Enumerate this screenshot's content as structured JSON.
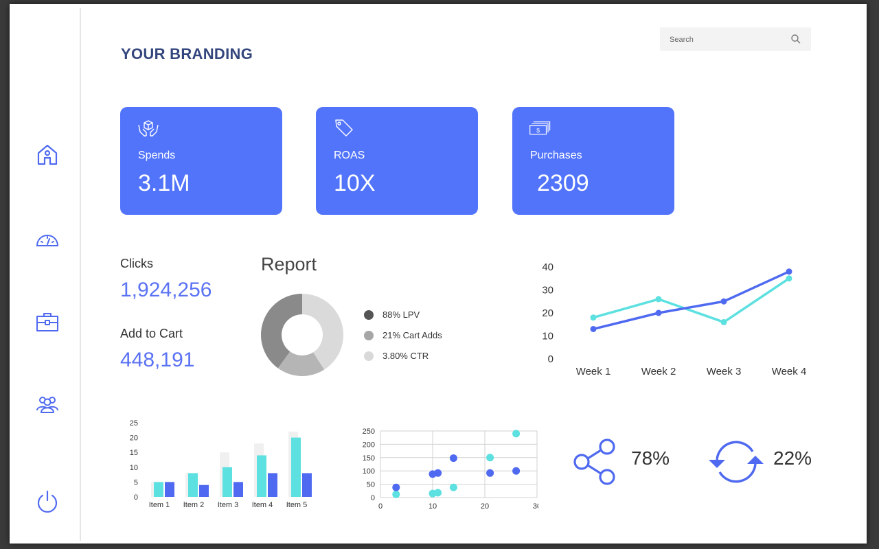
{
  "brand": {
    "title": "YOUR BRANDING"
  },
  "search": {
    "placeholder": "Search"
  },
  "sidebar": {
    "items": [
      {
        "icon": "home-icon"
      },
      {
        "icon": "gauge-icon"
      },
      {
        "icon": "briefcase-icon"
      },
      {
        "icon": "users-icon"
      },
      {
        "icon": "power-icon"
      }
    ]
  },
  "cards": [
    {
      "label": "Spends",
      "value": "3.1M",
      "icon": "box-in-hands-icon"
    },
    {
      "label": "ROAS",
      "value": "10X",
      "icon": "tag-icon"
    },
    {
      "label": "Purchases",
      "value": "2309",
      "icon": "money-icon"
    }
  ],
  "stats": {
    "clicks_label": "Clicks",
    "clicks_value": "1,924,256",
    "cart_label": "Add to Cart",
    "cart_value": "448,191"
  },
  "report": {
    "title": "Report",
    "legend": [
      {
        "label": "88% LPV",
        "color": "#555555"
      },
      {
        "label": "21% Cart Adds",
        "color": "#a6a6a6"
      },
      {
        "label": "3.80% CTR",
        "color": "#d9d9d9"
      }
    ]
  },
  "kpis": {
    "share_value": "78%",
    "sync_value": "22%"
  },
  "colors": {
    "accent": "#5274fb",
    "teal": "#5de0e0",
    "blue": "#4f6af0"
  },
  "chart_data": [
    {
      "type": "pie",
      "labels": [
        "88% LPV",
        "21% Cart Adds",
        "3.80% CTR"
      ],
      "values": [
        40,
        19,
        41
      ],
      "colors": [
        "#8a8a8a",
        "#b5b5b5",
        "#dadada"
      ]
    },
    {
      "type": "line",
      "categories": [
        "Week 1",
        "Week 2",
        "Week 3",
        "Week 4"
      ],
      "ylim": [
        0,
        40
      ],
      "yticks": [
        0,
        10,
        20,
        30,
        40
      ],
      "grid": false,
      "series": [
        {
          "values": [
            18,
            26,
            16,
            35
          ],
          "color": "#5de0e0"
        },
        {
          "values": [
            13,
            20,
            25,
            38
          ],
          "color": "#4f6af0"
        }
      ]
    },
    {
      "type": "bar",
      "categories": [
        "Item 1",
        "Item 2",
        "Item 3",
        "Item 4",
        "Item 5"
      ],
      "ylim": [
        0,
        25
      ],
      "yticks": [
        0,
        5,
        10,
        15,
        20,
        25
      ],
      "series": [
        {
          "values": [
            5,
            8,
            15,
            18,
            22
          ],
          "color": "#f0f0f0"
        },
        {
          "values": [
            5,
            8,
            10,
            14,
            20
          ],
          "color": "#5de0e0"
        },
        {
          "values": [
            5,
            4,
            5,
            8,
            8
          ],
          "color": "#4f6af0"
        }
      ]
    },
    {
      "type": "scatter",
      "xlim": [
        0,
        30
      ],
      "ylim": [
        0,
        250
      ],
      "xticks": [
        0,
        10,
        20,
        30
      ],
      "yticks": [
        0,
        50,
        100,
        150,
        200,
        250
      ],
      "grid": true,
      "series": [
        {
          "color": "#5de0e0",
          "points": [
            [
              3,
              12
            ],
            [
              10,
              15
            ],
            [
              11,
              18
            ],
            [
              14,
              38
            ],
            [
              21,
              150
            ],
            [
              26,
              240
            ]
          ]
        },
        {
          "color": "#4f6af0",
          "points": [
            [
              3,
              38
            ],
            [
              10,
              88
            ],
            [
              11,
              92
            ],
            [
              14,
              148
            ],
            [
              21,
              92
            ],
            [
              26,
              100
            ]
          ]
        }
      ]
    }
  ]
}
